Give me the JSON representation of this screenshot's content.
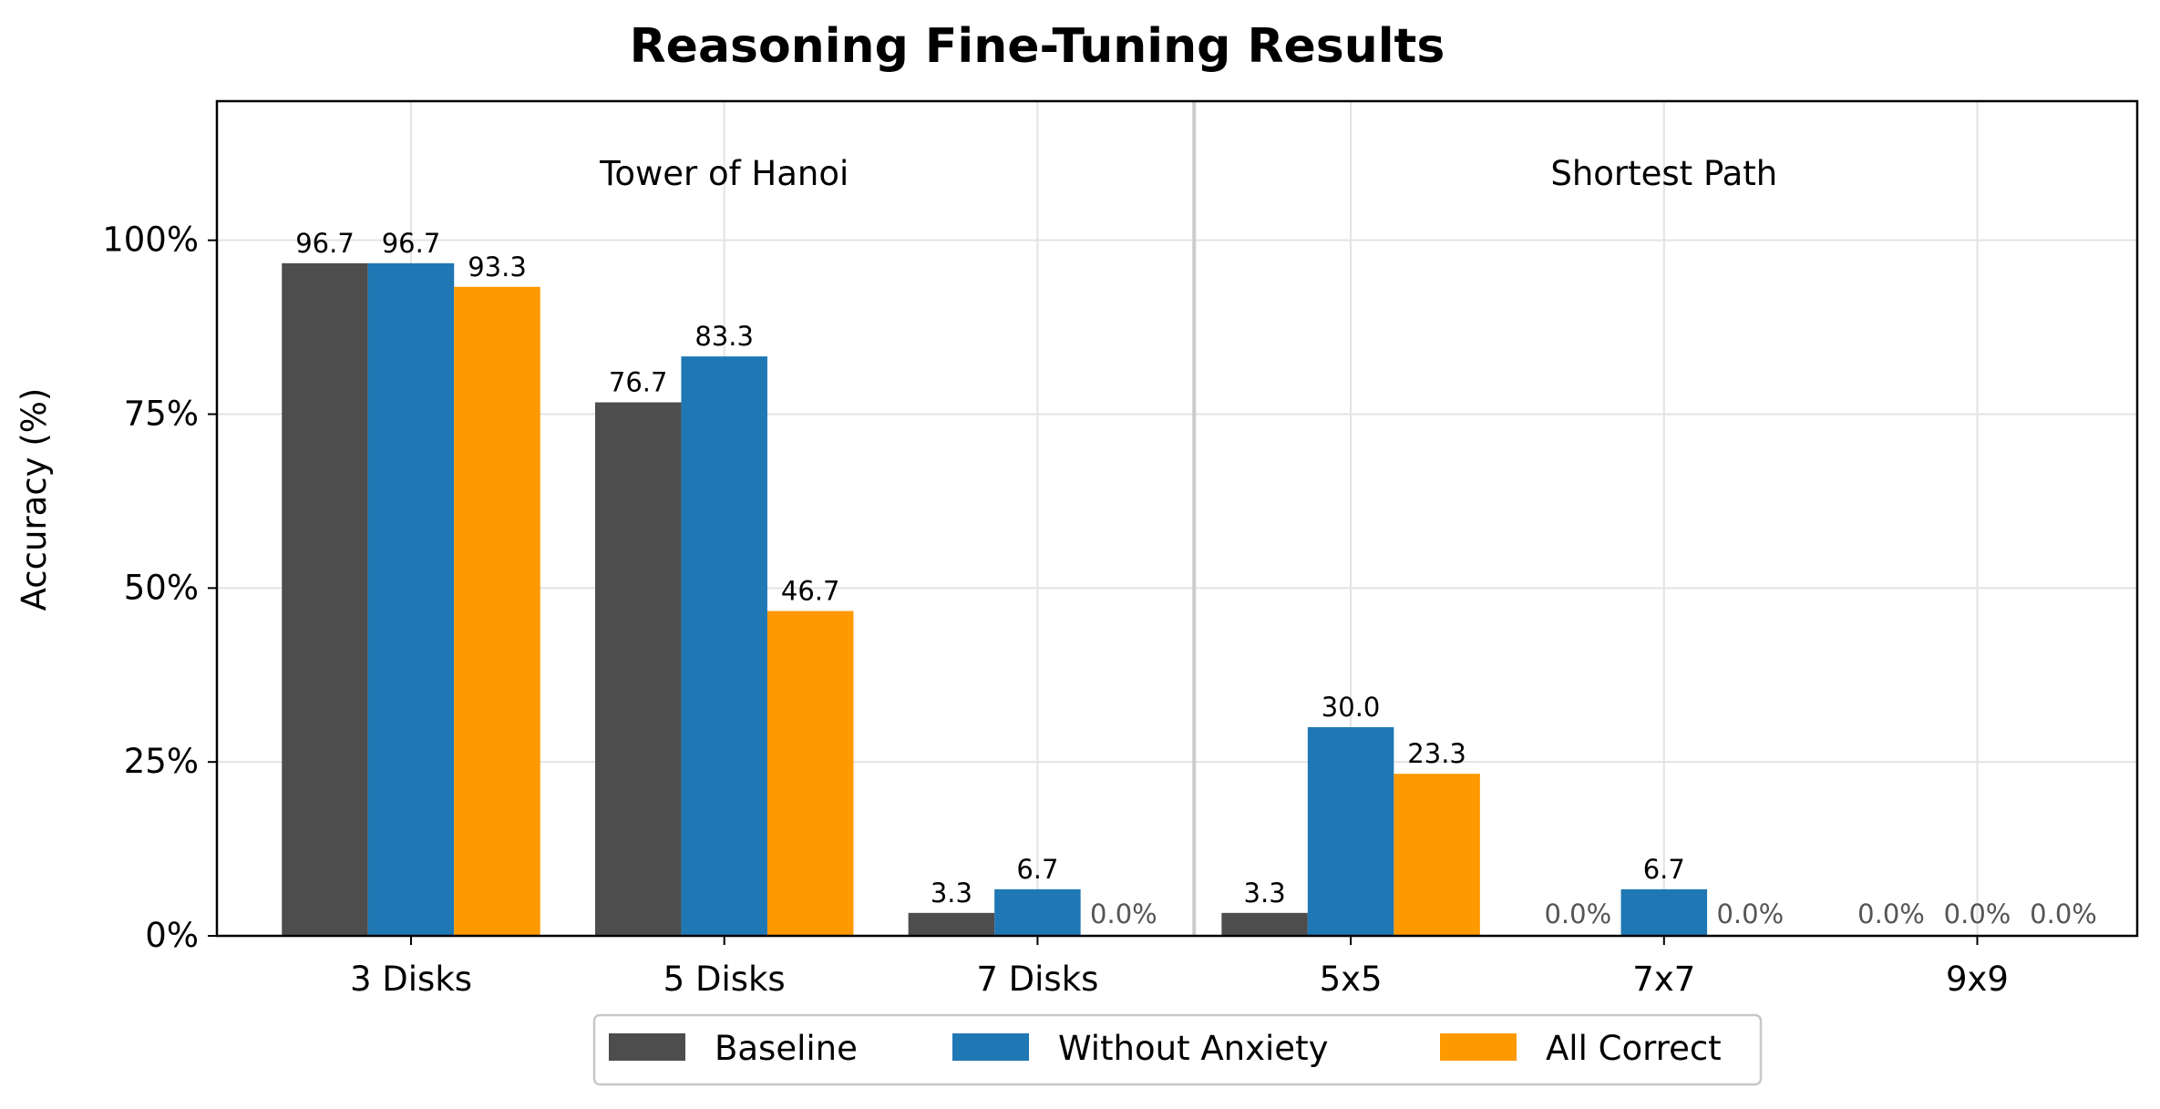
{
  "chart_data": {
    "type": "bar",
    "title": "Reasoning Fine-Tuning Results",
    "xlabel": "",
    "ylabel": "Accuracy (%)",
    "ylim": [
      0,
      120
    ],
    "yticks": [
      0,
      25,
      50,
      75,
      100
    ],
    "ytick_labels": [
      "0%",
      "25%",
      "50%",
      "75%",
      "100%"
    ],
    "categories": [
      "3 Disks",
      "5 Disks",
      "7 Disks",
      "5x5",
      "7x7",
      "9x9"
    ],
    "groups": [
      {
        "label": "Tower of Hanoi",
        "categories": [
          "3 Disks",
          "5 Disks",
          "7 Disks"
        ]
      },
      {
        "label": "Shortest Path",
        "categories": [
          "5x5",
          "7x7",
          "9x9"
        ]
      }
    ],
    "series": [
      {
        "name": "Baseline",
        "color": "#4d4d4d",
        "values": [
          96.7,
          76.7,
          3.3,
          3.3,
          0.0,
          0.0
        ]
      },
      {
        "name": "Without Anxiety",
        "color": "#1f77b4",
        "values": [
          96.7,
          83.3,
          6.7,
          30.0,
          6.7,
          0.0
        ]
      },
      {
        "name": "All Correct",
        "color": "#ff9900",
        "values": [
          93.3,
          46.7,
          0.0,
          23.3,
          0.0,
          0.0
        ]
      }
    ],
    "grid": true,
    "legend_position": "bottom-center",
    "zero_label_color": "#555555"
  }
}
